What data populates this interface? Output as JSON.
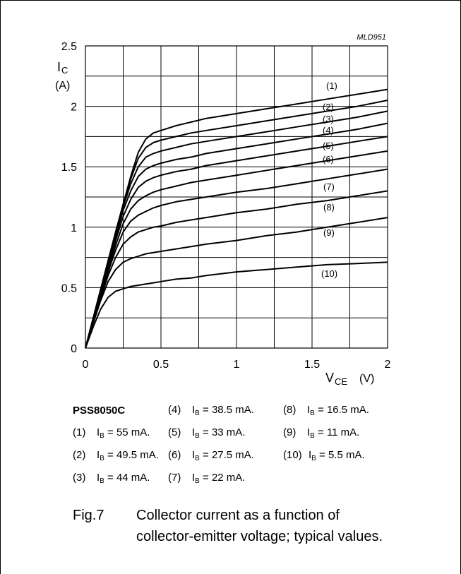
{
  "chart_data": {
    "type": "line",
    "code": "MLD951",
    "ylabel_main": "I",
    "ylabel_sub": "C",
    "ylabel_unit": "(A)",
    "xlabel_main": "V",
    "xlabel_sub": "CE",
    "xlabel_unit": "(V)",
    "xlim": [
      0,
      2
    ],
    "ylim": [
      0,
      2.5
    ],
    "xticks": [
      "0",
      "0.5",
      "1",
      "1.5",
      "2"
    ],
    "yticks": [
      "0",
      "0.5",
      "1",
      "1.5",
      "2",
      "2.5"
    ],
    "x_tick_values": [
      0,
      0.5,
      1,
      1.5,
      2
    ],
    "y_tick_values": [
      0,
      0.5,
      1,
      1.5,
      2,
      2.5
    ],
    "grid": true,
    "x": [
      0,
      0.05,
      0.1,
      0.15,
      0.2,
      0.25,
      0.3,
      0.35,
      0.4,
      0.45,
      0.5,
      0.6,
      0.7,
      0.8,
      1.0,
      1.2,
      1.4,
      1.6,
      1.8,
      2.0
    ],
    "series": [
      {
        "name": "(1)",
        "values": [
          0,
          0.24,
          0.48,
          0.72,
          0.96,
          1.19,
          1.42,
          1.62,
          1.73,
          1.78,
          1.8,
          1.84,
          1.87,
          1.9,
          1.94,
          1.98,
          2.02,
          2.06,
          2.1,
          2.14
        ]
      },
      {
        "name": "(2)",
        "values": [
          0,
          0.24,
          0.48,
          0.72,
          0.96,
          1.19,
          1.4,
          1.57,
          1.66,
          1.7,
          1.72,
          1.75,
          1.78,
          1.8,
          1.84,
          1.88,
          1.92,
          1.96,
          2.0,
          2.05
        ]
      },
      {
        "name": "(3)",
        "values": [
          0,
          0.24,
          0.48,
          0.72,
          0.95,
          1.17,
          1.36,
          1.5,
          1.58,
          1.61,
          1.63,
          1.66,
          1.69,
          1.71,
          1.75,
          1.79,
          1.83,
          1.87,
          1.91,
          1.96
        ]
      },
      {
        "name": "(4)",
        "values": [
          0,
          0.23,
          0.46,
          0.69,
          0.92,
          1.14,
          1.3,
          1.42,
          1.48,
          1.51,
          1.53,
          1.56,
          1.58,
          1.61,
          1.65,
          1.69,
          1.73,
          1.77,
          1.81,
          1.86
        ]
      },
      {
        "name": "(5)",
        "values": [
          0,
          0.23,
          0.45,
          0.67,
          0.89,
          1.09,
          1.23,
          1.33,
          1.38,
          1.41,
          1.43,
          1.46,
          1.48,
          1.51,
          1.55,
          1.59,
          1.63,
          1.67,
          1.71,
          1.75
        ]
      },
      {
        "name": "(6)",
        "values": [
          0,
          0.22,
          0.44,
          0.65,
          0.85,
          1.03,
          1.15,
          1.22,
          1.26,
          1.29,
          1.31,
          1.34,
          1.37,
          1.39,
          1.43,
          1.47,
          1.51,
          1.55,
          1.59,
          1.63
        ]
      },
      {
        "name": "(7)",
        "values": [
          0,
          0.22,
          0.43,
          0.63,
          0.81,
          0.96,
          1.05,
          1.1,
          1.13,
          1.16,
          1.18,
          1.21,
          1.23,
          1.25,
          1.29,
          1.32,
          1.36,
          1.4,
          1.44,
          1.48
        ]
      },
      {
        "name": "(8)",
        "values": [
          0,
          0.21,
          0.41,
          0.6,
          0.75,
          0.86,
          0.92,
          0.96,
          0.98,
          1.0,
          1.01,
          1.04,
          1.06,
          1.08,
          1.12,
          1.15,
          1.19,
          1.22,
          1.26,
          1.3
        ]
      },
      {
        "name": "(9)",
        "values": [
          0,
          0.2,
          0.39,
          0.55,
          0.65,
          0.71,
          0.74,
          0.76,
          0.78,
          0.79,
          0.8,
          0.82,
          0.84,
          0.86,
          0.89,
          0.93,
          0.96,
          1.0,
          1.04,
          1.08
        ]
      },
      {
        "name": "(10)",
        "values": [
          0,
          0.17,
          0.32,
          0.42,
          0.47,
          0.49,
          0.51,
          0.52,
          0.53,
          0.54,
          0.55,
          0.57,
          0.58,
          0.6,
          0.63,
          0.65,
          0.67,
          0.69,
          0.7,
          0.71
        ]
      }
    ]
  },
  "legend": {
    "title": "PSS8050C",
    "items": [
      {
        "num": "(1)",
        "sym": "I",
        "sub": "B",
        "value": "= 55 mA."
      },
      {
        "num": "(2)",
        "sym": "I",
        "sub": "B",
        "value": "= 49.5 mA."
      },
      {
        "num": "(3)",
        "sym": "I",
        "sub": "B",
        "value": "= 44 mA."
      },
      {
        "num": "(4)",
        "sym": "I",
        "sub": "B",
        "value": "= 38.5 mA."
      },
      {
        "num": "(5)",
        "sym": "I",
        "sub": "B",
        "value": "= 33 mA."
      },
      {
        "num": "(6)",
        "sym": "I",
        "sub": "B",
        "value": "= 27.5 mA."
      },
      {
        "num": "(7)",
        "sym": "I",
        "sub": "B",
        "value": "= 22 mA."
      },
      {
        "num": "(8)",
        "sym": "I",
        "sub": "B",
        "value": "= 16.5 mA."
      },
      {
        "num": "(9)",
        "sym": "I",
        "sub": "B",
        "value": "= 11 mA."
      },
      {
        "num": "(10)",
        "sym": "I",
        "sub": "B",
        "value": "= 5.5 mA."
      }
    ]
  },
  "caption": {
    "fig": "Fig.7",
    "line1": "Collector current as a function of",
    "line2": "collector-emitter voltage; typical values."
  }
}
